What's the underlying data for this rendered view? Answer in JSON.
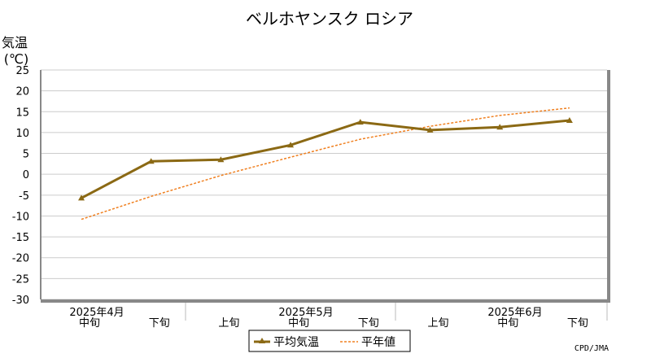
{
  "chart_data": {
    "type": "line",
    "title": "ベルホヤンスク ロシア",
    "ylabel_line1": "気温",
    "ylabel_line2": "(℃)",
    "ylim": [
      -30,
      25
    ],
    "yticks": [
      25,
      20,
      15,
      10,
      5,
      0,
      -5,
      -10,
      -15,
      -20,
      -25,
      -30
    ],
    "grid": true,
    "x_periods": [
      "中旬",
      "下旬",
      "上旬",
      "中旬",
      "下旬",
      "上旬",
      "中旬",
      "下旬"
    ],
    "x_months": [
      "2025年4月",
      "2025年5月",
      "2025年6月"
    ],
    "series": [
      {
        "name": "平均気温",
        "color": "#8B6914",
        "style": "solid-triangle",
        "values": [
          -5.7,
          3.1,
          3.5,
          7.0,
          12.5,
          10.6,
          11.3,
          12.9
        ]
      },
      {
        "name": "平年値",
        "color": "#F08020",
        "style": "dotted",
        "values": [
          -10.8,
          -5.3,
          -0.3,
          4.1,
          8.4,
          11.5,
          14.1,
          15.9
        ]
      }
    ],
    "legend_position": "bottom-center"
  },
  "credit": "CPD/JMA"
}
